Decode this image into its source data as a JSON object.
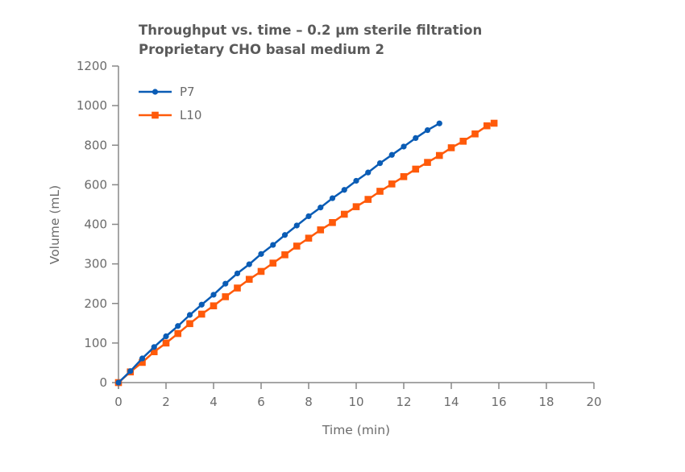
{
  "chart_data": {
    "type": "line",
    "title": "Throughput vs. time – 0.2 µm sterile filtration",
    "subtitle": "Proprietary CHO basal medium 2",
    "xlabel": "Time (min)",
    "ylabel": "Volume (mL)",
    "xlim": [
      0,
      20
    ],
    "x_ticks": [
      "0",
      "2",
      "4",
      "6",
      "8",
      "10",
      "12",
      "14",
      "16",
      "18",
      "20"
    ],
    "y_ticks": [
      "0",
      "100",
      "200",
      "300",
      "400",
      "600",
      "800",
      "1000",
      "1200"
    ],
    "grid": false,
    "legend_position": "top-left",
    "series": [
      {
        "name": "P7",
        "color": "#0a5cb5",
        "marker": "circle",
        "x": [
          0,
          0.5,
          1,
          1.5,
          2,
          2.5,
          3,
          3.5,
          4,
          4.5,
          5,
          5.5,
          6,
          6.5,
          7,
          7.5,
          8,
          8.5,
          9,
          9.5,
          10,
          10.5,
          11,
          11.5,
          12,
          12.5,
          13,
          13.5
        ],
        "y": [
          0,
          29,
          61,
          90,
          117,
          143,
          171,
          197,
          222,
          250,
          276,
          299,
          325,
          348,
          373,
          397,
          441,
          485,
          532,
          574,
          620,
          662,
          709,
          751,
          793,
          836,
          876,
          910
        ]
      },
      {
        "name": "L10",
        "color": "#ff5a0a",
        "marker": "square",
        "x": [
          0,
          0.5,
          1,
          1.5,
          2,
          2.5,
          3,
          3.5,
          4,
          4.5,
          5,
          5.5,
          6,
          6.5,
          7,
          7.5,
          8,
          8.5,
          9,
          9.5,
          10,
          10.5,
          11,
          11.5,
          12,
          12.5,
          13,
          13.5,
          14,
          14.5,
          15,
          15.5,
          15.8
        ],
        "y": [
          0,
          27,
          51,
          78,
          100,
          124,
          149,
          173,
          194,
          217,
          239,
          261,
          281,
          302,
          323,
          345,
          365,
          386,
          409,
          451,
          489,
          526,
          567,
          604,
          641,
          679,
          713,
          748,
          787,
          820,
          857,
          898,
          911
        ]
      }
    ]
  }
}
